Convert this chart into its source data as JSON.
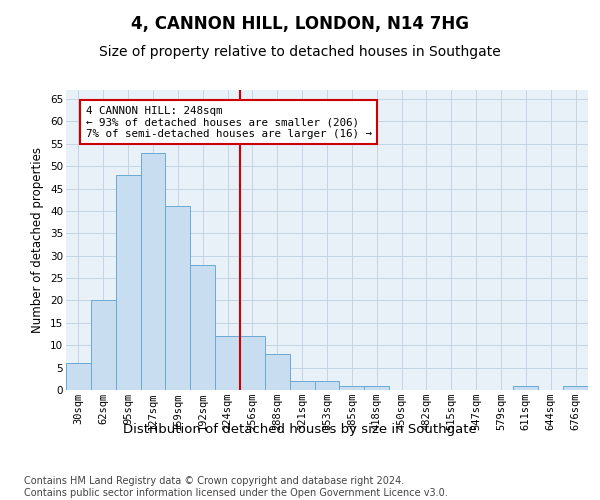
{
  "title": "4, CANNON HILL, LONDON, N14 7HG",
  "subtitle": "Size of property relative to detached houses in Southgate",
  "xlabel": "Distribution of detached houses by size in Southgate",
  "ylabel": "Number of detached properties",
  "categories": [
    "30sqm",
    "62sqm",
    "95sqm",
    "127sqm",
    "159sqm",
    "192sqm",
    "224sqm",
    "256sqm",
    "288sqm",
    "321sqm",
    "353sqm",
    "385sqm",
    "418sqm",
    "450sqm",
    "482sqm",
    "515sqm",
    "547sqm",
    "579sqm",
    "611sqm",
    "644sqm",
    "676sqm"
  ],
  "values": [
    6,
    20,
    48,
    53,
    41,
    28,
    12,
    12,
    8,
    2,
    2,
    1,
    1,
    0,
    0,
    0,
    0,
    0,
    1,
    0,
    1
  ],
  "bar_color": "#c9ddf0",
  "bar_edge_color": "#6aaad4",
  "ylim": [
    0,
    67
  ],
  "yticks": [
    0,
    5,
    10,
    15,
    20,
    25,
    30,
    35,
    40,
    45,
    50,
    55,
    60,
    65
  ],
  "vline_index": 7,
  "vline_color": "#cc0000",
  "annotation_text": "4 CANNON HILL: 248sqm\n← 93% of detached houses are smaller (206)\n7% of semi-detached houses are larger (16) →",
  "annotation_box_color": "#ffffff",
  "annotation_box_edge": "#cc0000",
  "footer_line1": "Contains HM Land Registry data © Crown copyright and database right 2024.",
  "footer_line2": "Contains public sector information licensed under the Open Government Licence v3.0.",
  "bg_color": "#ffffff",
  "plot_bg_color": "#e8f0f8",
  "grid_color": "#c0d0e0",
  "title_fontsize": 12,
  "subtitle_fontsize": 10,
  "xlabel_fontsize": 9.5,
  "ylabel_fontsize": 8.5,
  "tick_fontsize": 7.5,
  "annotation_fontsize": 7.8,
  "footer_fontsize": 7.0
}
